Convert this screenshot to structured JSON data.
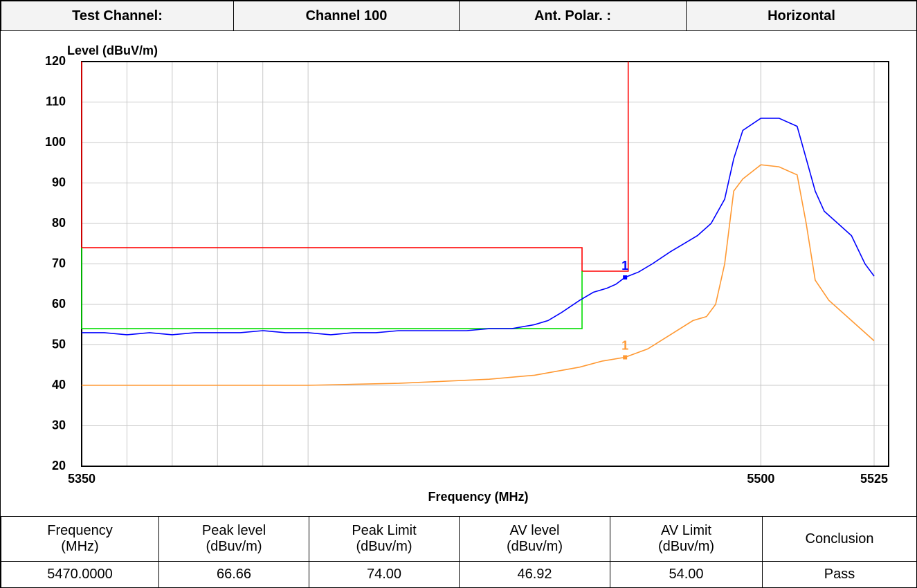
{
  "header": [
    "Test Channel:",
    "Channel 100",
    "Ant. Polar. :",
    "Horizontal"
  ],
  "chart_data": {
    "type": "line",
    "y_label": "Level (dBuV/m)",
    "x_label": "Frequency (MHz)",
    "xlim": [
      5350,
      5525
    ],
    "xticks": [
      5350,
      5500,
      5525
    ],
    "xgrid": [
      5360,
      5370,
      5380,
      5390,
      5400,
      5500
    ],
    "ylim": [
      20,
      120
    ],
    "yticks": [
      20,
      30,
      40,
      50,
      60,
      70,
      80,
      90,
      100,
      110,
      120
    ],
    "grid": true,
    "series": [
      {
        "color": "#ff0000",
        "x": [
          5350,
          5350,
          5460.5,
          5460.5,
          5470.7,
          5470.7
        ],
        "values": [
          120,
          74,
          74,
          68.2,
          68.2,
          120
        ]
      },
      {
        "color": "#00dd00",
        "x": [
          5350,
          5350,
          5460.5,
          5460.5
        ],
        "values": [
          74,
          54,
          54,
          68.2
        ]
      },
      {
        "color": "#0000ff",
        "x": [
          5350,
          5355,
          5360,
          5365,
          5370,
          5375,
          5380,
          5385,
          5390,
          5395,
          5400,
          5405,
          5410,
          5415,
          5420,
          5425,
          5430,
          5435,
          5440,
          5445,
          5450,
          5453,
          5456,
          5460,
          5463,
          5466,
          5468,
          5470,
          5473,
          5476,
          5480,
          5483,
          5486,
          5489,
          5492,
          5494,
          5496,
          5500,
          5504,
          5508,
          5510,
          5512,
          5514,
          5517,
          5520,
          5523,
          5525
        ],
        "values": [
          53,
          53,
          52.5,
          53,
          52.5,
          53,
          53,
          53,
          53.5,
          53,
          53,
          52.5,
          53,
          53,
          53.5,
          53.5,
          53.5,
          53.5,
          54,
          54,
          55,
          56,
          58,
          61,
          63,
          64,
          65,
          66.66,
          68,
          70,
          73,
          75,
          77,
          80,
          86,
          96,
          103,
          106,
          106,
          104,
          96,
          88,
          83,
          80,
          77,
          70,
          67
        ]
      },
      {
        "color": "#ff9933",
        "x": [
          5350,
          5380,
          5400,
          5420,
          5440,
          5450,
          5460,
          5465,
          5470,
          5475,
          5480,
          5485,
          5488,
          5490,
          5492,
          5494,
          5496,
          5500,
          5504,
          5508,
          5510,
          5512,
          5515,
          5520,
          5525
        ],
        "values": [
          40,
          40,
          40,
          40.5,
          41.5,
          42.5,
          44.5,
          46,
          46.92,
          49,
          52.5,
          56,
          57,
          60,
          70,
          88,
          91,
          94.5,
          94,
          92,
          80,
          66,
          61,
          56,
          51
        ]
      }
    ],
    "markers": [
      {
        "label": "1",
        "x": 5470,
        "y": 66.66,
        "color": "#0000ff"
      },
      {
        "label": "1",
        "x": 5470,
        "y": 46.92,
        "color": "#ff9933"
      }
    ]
  },
  "table": {
    "headers": [
      "Frequency\n(MHz)",
      "Peak level\n(dBuv/m)",
      "Peak Limit\n(dBuv/m)",
      "AV level\n(dBuv/m)",
      "AV Limit\n(dBuv/m)",
      "Conclusion"
    ],
    "rows": [
      [
        "5470.0000",
        "66.66",
        "74.00",
        "46.92",
        "54.00",
        "Pass"
      ]
    ]
  }
}
